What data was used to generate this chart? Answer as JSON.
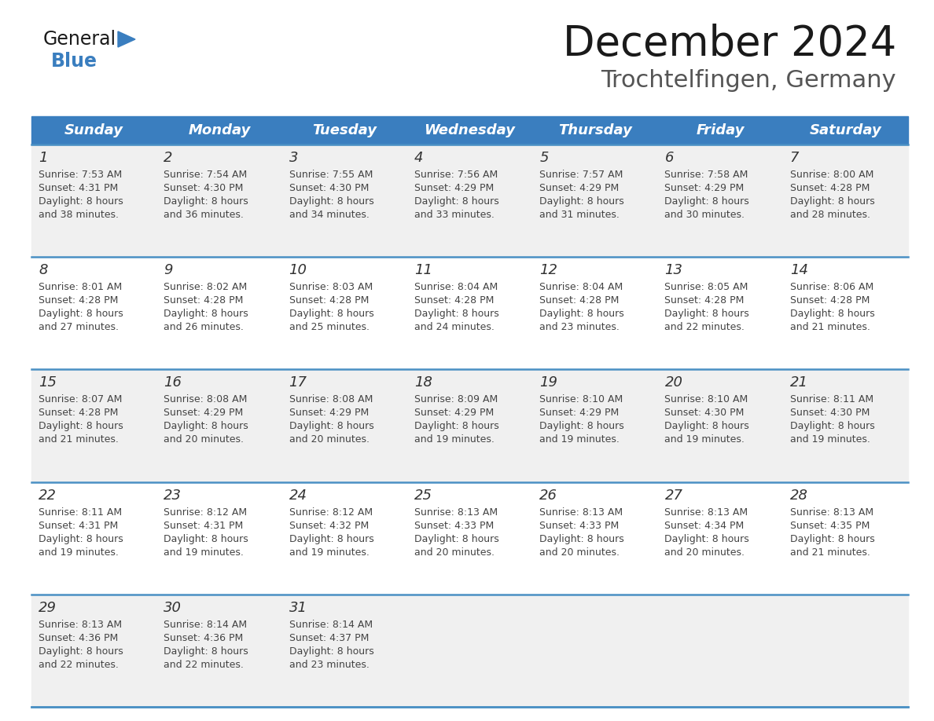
{
  "title": "December 2024",
  "subtitle": "Trochtelfingen, Germany",
  "days_of_week": [
    "Sunday",
    "Monday",
    "Tuesday",
    "Wednesday",
    "Thursday",
    "Friday",
    "Saturday"
  ],
  "header_bg": "#3a7ebf",
  "header_text": "#ffffff",
  "row_bg_odd": "#f0f0f0",
  "row_bg_even": "#ffffff",
  "divider_color": "#4a90c4",
  "text_color": "#333333",
  "day_num_color": "#333333",
  "calendar_data": [
    [
      {
        "day": 1,
        "sunrise": "7:53 AM",
        "sunset": "4:31 PM",
        "daylight": "8 hours and 38 minutes."
      },
      {
        "day": 2,
        "sunrise": "7:54 AM",
        "sunset": "4:30 PM",
        "daylight": "8 hours and 36 minutes."
      },
      {
        "day": 3,
        "sunrise": "7:55 AM",
        "sunset": "4:30 PM",
        "daylight": "8 hours and 34 minutes."
      },
      {
        "day": 4,
        "sunrise": "7:56 AM",
        "sunset": "4:29 PM",
        "daylight": "8 hours and 33 minutes."
      },
      {
        "day": 5,
        "sunrise": "7:57 AM",
        "sunset": "4:29 PM",
        "daylight": "8 hours and 31 minutes."
      },
      {
        "day": 6,
        "sunrise": "7:58 AM",
        "sunset": "4:29 PM",
        "daylight": "8 hours and 30 minutes."
      },
      {
        "day": 7,
        "sunrise": "8:00 AM",
        "sunset": "4:28 PM",
        "daylight": "8 hours and 28 minutes."
      }
    ],
    [
      {
        "day": 8,
        "sunrise": "8:01 AM",
        "sunset": "4:28 PM",
        "daylight": "8 hours and 27 minutes."
      },
      {
        "day": 9,
        "sunrise": "8:02 AM",
        "sunset": "4:28 PM",
        "daylight": "8 hours and 26 minutes."
      },
      {
        "day": 10,
        "sunrise": "8:03 AM",
        "sunset": "4:28 PM",
        "daylight": "8 hours and 25 minutes."
      },
      {
        "day": 11,
        "sunrise": "8:04 AM",
        "sunset": "4:28 PM",
        "daylight": "8 hours and 24 minutes."
      },
      {
        "day": 12,
        "sunrise": "8:04 AM",
        "sunset": "4:28 PM",
        "daylight": "8 hours and 23 minutes."
      },
      {
        "day": 13,
        "sunrise": "8:05 AM",
        "sunset": "4:28 PM",
        "daylight": "8 hours and 22 minutes."
      },
      {
        "day": 14,
        "sunrise": "8:06 AM",
        "sunset": "4:28 PM",
        "daylight": "8 hours and 21 minutes."
      }
    ],
    [
      {
        "day": 15,
        "sunrise": "8:07 AM",
        "sunset": "4:28 PM",
        "daylight": "8 hours and 21 minutes."
      },
      {
        "day": 16,
        "sunrise": "8:08 AM",
        "sunset": "4:29 PM",
        "daylight": "8 hours and 20 minutes."
      },
      {
        "day": 17,
        "sunrise": "8:08 AM",
        "sunset": "4:29 PM",
        "daylight": "8 hours and 20 minutes."
      },
      {
        "day": 18,
        "sunrise": "8:09 AM",
        "sunset": "4:29 PM",
        "daylight": "8 hours and 19 minutes."
      },
      {
        "day": 19,
        "sunrise": "8:10 AM",
        "sunset": "4:29 PM",
        "daylight": "8 hours and 19 minutes."
      },
      {
        "day": 20,
        "sunrise": "8:10 AM",
        "sunset": "4:30 PM",
        "daylight": "8 hours and 19 minutes."
      },
      {
        "day": 21,
        "sunrise": "8:11 AM",
        "sunset": "4:30 PM",
        "daylight": "8 hours and 19 minutes."
      }
    ],
    [
      {
        "day": 22,
        "sunrise": "8:11 AM",
        "sunset": "4:31 PM",
        "daylight": "8 hours and 19 minutes."
      },
      {
        "day": 23,
        "sunrise": "8:12 AM",
        "sunset": "4:31 PM",
        "daylight": "8 hours and 19 minutes."
      },
      {
        "day": 24,
        "sunrise": "8:12 AM",
        "sunset": "4:32 PM",
        "daylight": "8 hours and 19 minutes."
      },
      {
        "day": 25,
        "sunrise": "8:13 AM",
        "sunset": "4:33 PM",
        "daylight": "8 hours and 20 minutes."
      },
      {
        "day": 26,
        "sunrise": "8:13 AM",
        "sunset": "4:33 PM",
        "daylight": "8 hours and 20 minutes."
      },
      {
        "day": 27,
        "sunrise": "8:13 AM",
        "sunset": "4:34 PM",
        "daylight": "8 hours and 20 minutes."
      },
      {
        "day": 28,
        "sunrise": "8:13 AM",
        "sunset": "4:35 PM",
        "daylight": "8 hours and 21 minutes."
      }
    ],
    [
      {
        "day": 29,
        "sunrise": "8:13 AM",
        "sunset": "4:36 PM",
        "daylight": "8 hours and 22 minutes."
      },
      {
        "day": 30,
        "sunrise": "8:14 AM",
        "sunset": "4:36 PM",
        "daylight": "8 hours and 22 minutes."
      },
      {
        "day": 31,
        "sunrise": "8:14 AM",
        "sunset": "4:37 PM",
        "daylight": "8 hours and 23 minutes."
      },
      null,
      null,
      null,
      null
    ]
  ],
  "logo_color_general": "#1a1a1a",
  "logo_color_blue": "#3a7ebf",
  "title_fontsize": 38,
  "subtitle_fontsize": 22,
  "header_fontsize": 13,
  "day_num_fontsize": 13,
  "cell_text_fontsize": 9
}
